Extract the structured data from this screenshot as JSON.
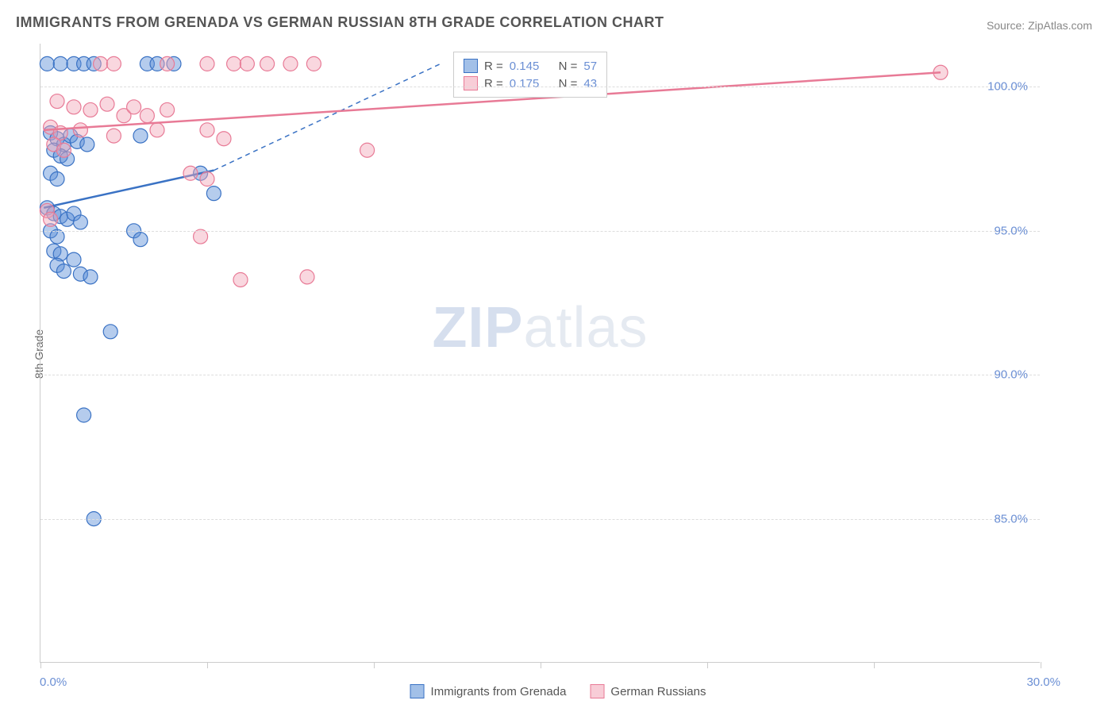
{
  "title": "IMMIGRANTS FROM GRENADA VS GERMAN RUSSIAN 8TH GRADE CORRELATION CHART",
  "source": "Source: ZipAtlas.com",
  "ylabel": "8th Grade",
  "watermark_a": "ZIP",
  "watermark_b": "atlas",
  "chart": {
    "type": "scatter",
    "xlim": [
      0,
      30
    ],
    "ylim": [
      80,
      101.5
    ],
    "yticks": [
      85.0,
      90.0,
      95.0,
      100.0
    ],
    "ytick_labels": [
      "85.0%",
      "90.0%",
      "95.0%",
      "100.0%"
    ],
    "xtick_labels": {
      "min": "0.0%",
      "max": "30.0%"
    },
    "grid_color": "#dddddd",
    "marker_radius": 9,
    "marker_opacity": 0.45,
    "series": [
      {
        "name": "Immigrants from Grenada",
        "color": "#5a8fd6",
        "stroke": "#3a72c4",
        "R": "0.145",
        "N": "57",
        "trend_solid": [
          [
            0.1,
            95.8
          ],
          [
            5.2,
            97.1
          ]
        ],
        "trend_dashed": [
          [
            5.2,
            97.1
          ],
          [
            12.0,
            100.8
          ]
        ],
        "points": [
          [
            0.2,
            100.8
          ],
          [
            0.6,
            100.8
          ],
          [
            1.0,
            100.8
          ],
          [
            1.3,
            100.8
          ],
          [
            1.6,
            100.8
          ],
          [
            3.2,
            100.8
          ],
          [
            3.5,
            100.8
          ],
          [
            4.0,
            100.8
          ],
          [
            0.3,
            98.4
          ],
          [
            0.5,
            98.2
          ],
          [
            0.7,
            98.0
          ],
          [
            0.9,
            98.3
          ],
          [
            1.1,
            98.1
          ],
          [
            1.4,
            98.0
          ],
          [
            0.4,
            97.8
          ],
          [
            0.6,
            97.6
          ],
          [
            0.8,
            97.5
          ],
          [
            3.0,
            98.3
          ],
          [
            0.3,
            97.0
          ],
          [
            0.5,
            96.8
          ],
          [
            4.8,
            97.0
          ],
          [
            5.2,
            96.3
          ],
          [
            0.2,
            95.8
          ],
          [
            0.4,
            95.6
          ],
          [
            0.6,
            95.5
          ],
          [
            0.8,
            95.4
          ],
          [
            1.0,
            95.6
          ],
          [
            1.2,
            95.3
          ],
          [
            0.3,
            95.0
          ],
          [
            0.5,
            94.8
          ],
          [
            2.8,
            95.0
          ],
          [
            3.0,
            94.7
          ],
          [
            0.4,
            94.3
          ],
          [
            0.6,
            94.2
          ],
          [
            1.0,
            94.0
          ],
          [
            0.5,
            93.8
          ],
          [
            0.7,
            93.6
          ],
          [
            1.2,
            93.5
          ],
          [
            1.5,
            93.4
          ],
          [
            2.1,
            91.5
          ],
          [
            1.3,
            88.6
          ],
          [
            1.6,
            85.0
          ]
        ]
      },
      {
        "name": "German Russians",
        "color": "#f2a6b8",
        "stroke": "#e87a96",
        "R": "0.175",
        "N": "43",
        "trend_solid": [
          [
            0.1,
            98.5
          ],
          [
            27.0,
            100.5
          ]
        ],
        "trend_dashed": null,
        "points": [
          [
            1.8,
            100.8
          ],
          [
            2.2,
            100.8
          ],
          [
            3.8,
            100.8
          ],
          [
            5.0,
            100.8
          ],
          [
            5.8,
            100.8
          ],
          [
            6.2,
            100.8
          ],
          [
            6.8,
            100.8
          ],
          [
            7.5,
            100.8
          ],
          [
            8.2,
            100.8
          ],
          [
            14.0,
            100.8
          ],
          [
            27.0,
            100.5
          ],
          [
            0.5,
            99.5
          ],
          [
            1.0,
            99.3
          ],
          [
            1.5,
            99.2
          ],
          [
            2.0,
            99.4
          ],
          [
            2.5,
            99.0
          ],
          [
            2.8,
            99.3
          ],
          [
            3.2,
            99.0
          ],
          [
            3.8,
            99.2
          ],
          [
            0.3,
            98.6
          ],
          [
            0.6,
            98.4
          ],
          [
            1.2,
            98.5
          ],
          [
            2.2,
            98.3
          ],
          [
            3.5,
            98.5
          ],
          [
            5.0,
            98.5
          ],
          [
            5.5,
            98.2
          ],
          [
            0.4,
            98.0
          ],
          [
            0.7,
            97.8
          ],
          [
            9.8,
            97.8
          ],
          [
            4.5,
            97.0
          ],
          [
            5.0,
            96.8
          ],
          [
            0.2,
            95.7
          ],
          [
            0.3,
            95.4
          ],
          [
            4.8,
            94.8
          ],
          [
            6.0,
            93.3
          ],
          [
            8.0,
            93.4
          ]
        ]
      }
    ]
  },
  "legend": {
    "r_label": "R =",
    "n_label": "N ="
  }
}
